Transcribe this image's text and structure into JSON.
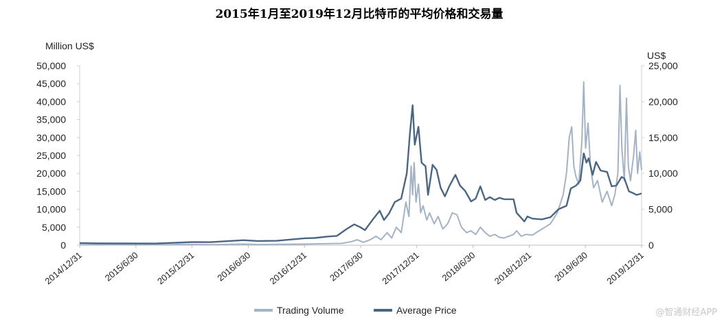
{
  "watermark": "@智通财经APP",
  "chart_data": {
    "type": "line",
    "title": "2015年1月至2019年12月比特币的平均价格和交易量",
    "ylabel_left": "Million US$",
    "ylabel_right": "US$",
    "ylim_left": [
      0,
      50000
    ],
    "ylim_right": [
      0,
      25000
    ],
    "yticks_left": [
      "50,000",
      "45,000",
      "40,000",
      "35,000",
      "30,000",
      "25,000",
      "20,000",
      "15,000",
      "10,000",
      "5,000",
      "0"
    ],
    "yticks_right": [
      "25,000",
      "20,000",
      "15,000",
      "10,000",
      "5,000",
      "0"
    ],
    "xlim": [
      "2014-12-31",
      "2019-12-31"
    ],
    "xticks": [
      "2014/12/31",
      "2015/6/30",
      "2015/12/31",
      "2016/6/30",
      "2016/12/31",
      "2017/6/30",
      "2017/12/31",
      "2018/6/30",
      "2018/12/31",
      "2019/6/30",
      "2019/12/31"
    ],
    "legend_position": "bottom",
    "series": [
      {
        "name": "Trading Volume",
        "axis": "left",
        "color": "#a3b3c5",
        "points": [
          [
            "2014-12-31",
            100
          ],
          [
            "2015-03-01",
            100
          ],
          [
            "2015-06-30",
            100
          ],
          [
            "2015-10-01",
            150
          ],
          [
            "2015-12-31",
            200
          ],
          [
            "2016-03-01",
            150
          ],
          [
            "2016-06-15",
            300
          ],
          [
            "2016-08-01",
            200
          ],
          [
            "2016-12-31",
            300
          ],
          [
            "2017-03-01",
            400
          ],
          [
            "2017-05-01",
            500
          ],
          [
            "2017-06-01",
            1000
          ],
          [
            "2017-06-20",
            1500
          ],
          [
            "2017-07-10",
            800
          ],
          [
            "2017-08-01",
            1500
          ],
          [
            "2017-08-20",
            2500
          ],
          [
            "2017-09-05",
            1500
          ],
          [
            "2017-09-25",
            3500
          ],
          [
            "2017-10-10",
            2000
          ],
          [
            "2017-10-25",
            5000
          ],
          [
            "2017-11-10",
            3500
          ],
          [
            "2017-11-25",
            12000
          ],
          [
            "2017-12-05",
            8000
          ],
          [
            "2017-12-12",
            22000
          ],
          [
            "2017-12-17",
            14000
          ],
          [
            "2017-12-22",
            23000
          ],
          [
            "2017-12-28",
            12000
          ],
          [
            "2018-01-05",
            17000
          ],
          [
            "2018-01-12",
            9000
          ],
          [
            "2018-01-20",
            11000
          ],
          [
            "2018-02-01",
            7000
          ],
          [
            "2018-02-10",
            9000
          ],
          [
            "2018-02-25",
            6000
          ],
          [
            "2018-03-10",
            8000
          ],
          [
            "2018-03-25",
            4500
          ],
          [
            "2018-04-10",
            6000
          ],
          [
            "2018-04-25",
            9000
          ],
          [
            "2018-05-10",
            8500
          ],
          [
            "2018-05-25",
            5000
          ],
          [
            "2018-06-10",
            3500
          ],
          [
            "2018-06-25",
            4000
          ],
          [
            "2018-07-10",
            3000
          ],
          [
            "2018-07-25",
            5000
          ],
          [
            "2018-08-10",
            3500
          ],
          [
            "2018-08-25",
            2500
          ],
          [
            "2018-09-10",
            3000
          ],
          [
            "2018-09-25",
            2200
          ],
          [
            "2018-10-10",
            2000
          ],
          [
            "2018-10-25",
            2500
          ],
          [
            "2018-11-10",
            3000
          ],
          [
            "2018-11-20",
            4000
          ],
          [
            "2018-12-05",
            2500
          ],
          [
            "2018-12-20",
            3000
          ],
          [
            "2019-01-10",
            2800
          ],
          [
            "2019-02-01",
            4000
          ],
          [
            "2019-02-20",
            5000
          ],
          [
            "2019-03-10",
            6000
          ],
          [
            "2019-04-01",
            9000
          ],
          [
            "2019-04-20",
            14000
          ],
          [
            "2019-05-01",
            20000
          ],
          [
            "2019-05-10",
            30000
          ],
          [
            "2019-05-18",
            33000
          ],
          [
            "2019-05-25",
            22000
          ],
          [
            "2019-06-01",
            19000
          ],
          [
            "2019-06-10",
            17000
          ],
          [
            "2019-06-20",
            29000
          ],
          [
            "2019-06-26",
            45500
          ],
          [
            "2019-07-02",
            27000
          ],
          [
            "2019-07-10",
            34000
          ],
          [
            "2019-07-18",
            22000
          ],
          [
            "2019-07-28",
            16000
          ],
          [
            "2019-08-10",
            18000
          ],
          [
            "2019-08-25",
            12000
          ],
          [
            "2019-09-10",
            15000
          ],
          [
            "2019-09-25",
            11000
          ],
          [
            "2019-10-05",
            14000
          ],
          [
            "2019-10-15",
            20000
          ],
          [
            "2019-10-22",
            44500
          ],
          [
            "2019-10-28",
            27000
          ],
          [
            "2019-11-05",
            18000
          ],
          [
            "2019-11-12",
            41000
          ],
          [
            "2019-11-18",
            22000
          ],
          [
            "2019-11-25",
            18000
          ],
          [
            "2019-12-05",
            25000
          ],
          [
            "2019-12-12",
            32000
          ],
          [
            "2019-12-18",
            20000
          ],
          [
            "2019-12-25",
            26000
          ],
          [
            "2019-12-31",
            21000
          ]
        ]
      },
      {
        "name": "Average Price",
        "axis": "right",
        "color": "#4a6683",
        "points": [
          [
            "2014-12-31",
            300
          ],
          [
            "2015-03-01",
            260
          ],
          [
            "2015-06-30",
            250
          ],
          [
            "2015-09-01",
            230
          ],
          [
            "2015-12-31",
            430
          ],
          [
            "2016-03-01",
            420
          ],
          [
            "2016-06-15",
            700
          ],
          [
            "2016-08-01",
            580
          ],
          [
            "2016-10-01",
            610
          ],
          [
            "2016-12-31",
            960
          ],
          [
            "2017-02-01",
            1000
          ],
          [
            "2017-03-15",
            1200
          ],
          [
            "2017-04-15",
            1300
          ],
          [
            "2017-05-15",
            2200
          ],
          [
            "2017-06-10",
            2900
          ],
          [
            "2017-06-30",
            2500
          ],
          [
            "2017-07-15",
            2100
          ],
          [
            "2017-08-10",
            3600
          ],
          [
            "2017-09-01",
            4800
          ],
          [
            "2017-09-15",
            3500
          ],
          [
            "2017-10-01",
            4400
          ],
          [
            "2017-10-20",
            6000
          ],
          [
            "2017-11-10",
            6500
          ],
          [
            "2017-11-28",
            10000
          ],
          [
            "2017-12-08",
            15500
          ],
          [
            "2017-12-17",
            19500
          ],
          [
            "2017-12-24",
            14000
          ],
          [
            "2018-01-05",
            16500
          ],
          [
            "2018-01-15",
            11500
          ],
          [
            "2018-01-28",
            11000
          ],
          [
            "2018-02-05",
            7000
          ],
          [
            "2018-02-20",
            11200
          ],
          [
            "2018-03-05",
            10500
          ],
          [
            "2018-03-18",
            8000
          ],
          [
            "2018-04-01",
            6800
          ],
          [
            "2018-04-15",
            8200
          ],
          [
            "2018-05-05",
            9800
          ],
          [
            "2018-05-20",
            8300
          ],
          [
            "2018-06-05",
            7600
          ],
          [
            "2018-06-25",
            6100
          ],
          [
            "2018-07-10",
            6500
          ],
          [
            "2018-07-25",
            8200
          ],
          [
            "2018-08-10",
            6300
          ],
          [
            "2018-08-25",
            6700
          ],
          [
            "2018-09-10",
            6300
          ],
          [
            "2018-09-25",
            6600
          ],
          [
            "2018-10-10",
            6400
          ],
          [
            "2018-11-10",
            6400
          ],
          [
            "2018-11-20",
            4500
          ],
          [
            "2018-12-05",
            3800
          ],
          [
            "2018-12-15",
            3300
          ],
          [
            "2018-12-25",
            4000
          ],
          [
            "2019-01-10",
            3700
          ],
          [
            "2019-02-10",
            3600
          ],
          [
            "2019-03-10",
            3900
          ],
          [
            "2019-04-05",
            5000
          ],
          [
            "2019-05-01",
            5500
          ],
          [
            "2019-05-15",
            7900
          ],
          [
            "2019-06-01",
            8300
          ],
          [
            "2019-06-15",
            9000
          ],
          [
            "2019-06-26",
            12800
          ],
          [
            "2019-07-05",
            11500
          ],
          [
            "2019-07-12",
            12100
          ],
          [
            "2019-07-25",
            9800
          ],
          [
            "2019-08-05",
            11600
          ],
          [
            "2019-08-20",
            10400
          ],
          [
            "2019-09-10",
            10200
          ],
          [
            "2019-09-25",
            8200
          ],
          [
            "2019-10-10",
            8300
          ],
          [
            "2019-10-27",
            9500
          ],
          [
            "2019-11-05",
            9300
          ],
          [
            "2019-11-20",
            7500
          ],
          [
            "2019-12-01",
            7300
          ],
          [
            "2019-12-15",
            7000
          ],
          [
            "2019-12-31",
            7200
          ]
        ]
      }
    ]
  }
}
